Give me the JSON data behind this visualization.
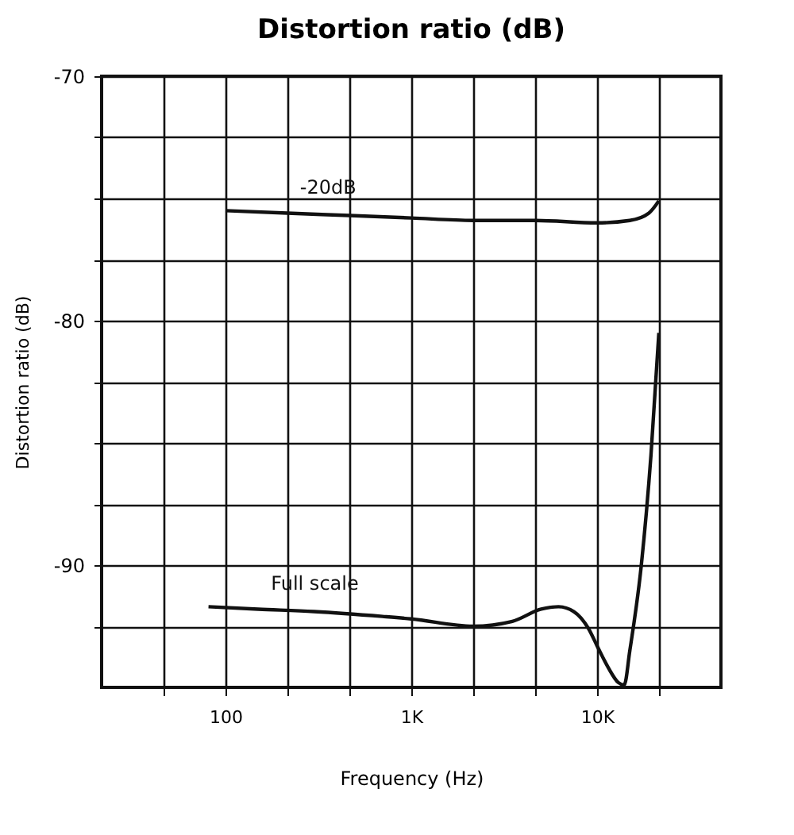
{
  "chart_data": {
    "type": "line",
    "title": "Distortion ratio (dB)",
    "xlabel": "Frequency (Hz)",
    "ylabel": "Distortion ratio (dB)",
    "log": "x",
    "grid": true,
    "legend": false,
    "marker": "none",
    "line_style": "solid",
    "xlim": [
      21.544,
      46416
    ],
    "xticks": [
      {
        "value": 46.416,
        "label": null
      },
      100,
      {
        "value": 215.44,
        "label": null
      },
      {
        "value": 464.16,
        "label": null
      },
      {
        "value": 1000,
        "label": "1K"
      },
      {
        "value": 2154.4,
        "label": null
      },
      {
        "value": 4641.6,
        "label": null
      },
      {
        "value": 10000,
        "label": "10K"
      },
      {
        "value": 21544,
        "label": null
      }
    ],
    "ylim": [
      -95,
      -70
    ],
    "yticks": [
      -70,
      {
        "value": -72.5,
        "label": null
      },
      {
        "value": -75,
        "label": null
      },
      {
        "value": -77.5,
        "label": null
      },
      -80,
      {
        "value": -82.5,
        "label": null
      },
      {
        "value": -85,
        "label": null
      },
      {
        "value": -87.5,
        "label": null
      },
      -90,
      {
        "value": -92.5,
        "label": null
      }
    ],
    "series": [
      {
        "name": "-20dB",
        "color": "#111111",
        "x": [
          100,
          215,
          464,
          1000,
          2150,
          4640,
          10000,
          15000,
          19000,
          21500
        ],
        "values": [
          -75.5,
          -75.6,
          -75.7,
          -75.8,
          -75.9,
          -75.9,
          -76.0,
          -75.9,
          -75.6,
          -75.1
        ]
      },
      {
        "name": "Full scale",
        "color": "#111111",
        "x": [
          81,
          150,
          300,
          700,
          1000,
          2150,
          3500,
          5000,
          6200,
          7500,
          9000,
          10000,
          11500,
          13000,
          14000,
          15000,
          17300,
          19500,
          21500
        ],
        "values": [
          -91.7,
          -91.8,
          -91.9,
          -92.1,
          -92.2,
          -92.5,
          -92.3,
          -91.8,
          -91.7,
          -91.9,
          -92.6,
          -93.3,
          -94.2,
          -94.8,
          -94.9,
          -93.5,
          -90.0,
          -85.5,
          -80.5
        ]
      }
    ]
  }
}
